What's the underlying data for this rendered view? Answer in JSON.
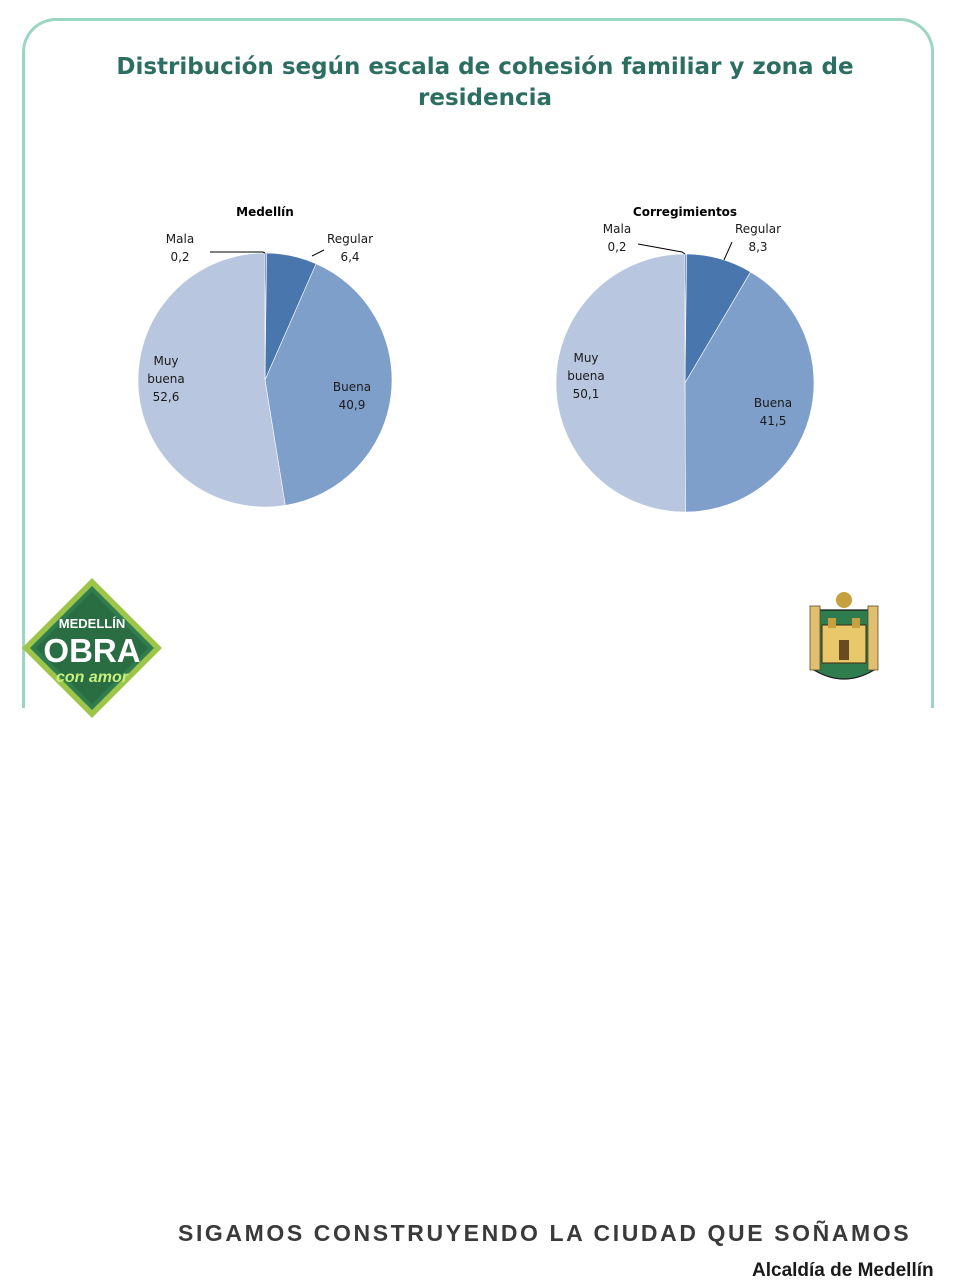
{
  "slide": {
    "title": "Distribución según escala de cohesión familiar y zona de residencia"
  },
  "chart_data": [
    {
      "type": "pie",
      "title": "Medellín",
      "categories": [
        "Mala",
        "Regular",
        "Buena",
        "Muy buena"
      ],
      "values": [
        0.2,
        6.4,
        40.9,
        52.6
      ],
      "value_labels": [
        "0,2",
        "6,4",
        "40,9",
        "52,6"
      ],
      "colors": [
        "#2f5c94",
        "#4a76ae",
        "#7f9fcb",
        "#b8c7df"
      ],
      "start": "top, clockwise"
    },
    {
      "type": "pie",
      "title": "Corregimientos",
      "categories": [
        "Mala",
        "Regular",
        "Buena",
        "Muy buena"
      ],
      "values": [
        0.2,
        8.3,
        41.5,
        50.1
      ],
      "value_labels": [
        "0,2",
        "8,3",
        "41,5",
        "50,1"
      ],
      "colors": [
        "#2f5c94",
        "#4a76ae",
        "#7f9fcb",
        "#b8c7df"
      ],
      "start": "top, clockwise"
    }
  ],
  "footer": {
    "logo_line1": "MEDELLÍN",
    "logo_line2": "OBRA",
    "logo_line3": "con amor",
    "tagline": "SIGAMOS CONSTRUYENDO LA CIUDAD QUE SOÑAMOS",
    "alcaldia": "Alcaldía de Medellín",
    "colors": {
      "logo_green": "#2f7d4f",
      "logo_lime": "#9fd24a",
      "frame": "#9cd6c3",
      "title": "#2d6e63"
    }
  }
}
